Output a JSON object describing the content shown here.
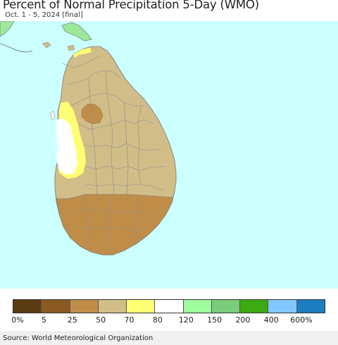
{
  "title": "Percent of Normal Precipitation 5-Day (WMO)",
  "subtitle": "Oct. 1 - 5, 2024 [final]",
  "source": "Source: World Meteorological Organization",
  "colors": {
    "ocean": "#ccffff",
    "border": "#555555",
    "outside_land": "#9be89b"
  },
  "legend": {
    "colors": [
      "#5a3c12",
      "#8b5a22",
      "#c08d48",
      "#d1bd88",
      "#ffff73",
      "#ffffff",
      "#9dfd9d",
      "#7acc7a",
      "#3caa12",
      "#80c8ff",
      "#1c7dc0"
    ],
    "labels": [
      "0%",
      "5",
      "25",
      "50",
      "70",
      "80",
      "120",
      "150",
      "200",
      "400",
      "600%"
    ]
  },
  "map": {
    "regions": [
      {
        "name": "northern-province",
        "category": "50"
      },
      {
        "name": "central-uplands-patch",
        "category": "25"
      },
      {
        "name": "western-coast-strip",
        "category": "70"
      },
      {
        "name": "western-coast-inner",
        "category": "80"
      },
      {
        "name": "southern-province",
        "category": "25"
      },
      {
        "name": "north-tip-strip",
        "category": "70"
      }
    ]
  }
}
